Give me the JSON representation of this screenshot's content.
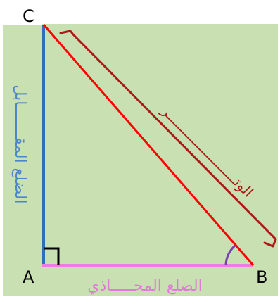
{
  "vertices": {
    "a": "A",
    "b": "B",
    "c": "C"
  },
  "sides": {
    "opposite": "الضلع المقـــــــابل",
    "adjacent": "الضلع المحـــــاذي",
    "hypotenuse": "الوتـــــــــــــــــــــــر"
  },
  "colors": {
    "background": "#c9e0b2",
    "vertical_side": "#2f6fb8",
    "horizontal_side": "#f07ae0",
    "hypotenuse": "#ff0000",
    "hypotenuse_bracket": "#b01818",
    "opposite_label": "#4b86c8",
    "adjacent_label": "#e07ad8",
    "hypotenuse_label": "#b01818",
    "angle_arc": "#7a3fb0",
    "right_angle_mark": "#000000",
    "vertex_label": "#000000"
  }
}
